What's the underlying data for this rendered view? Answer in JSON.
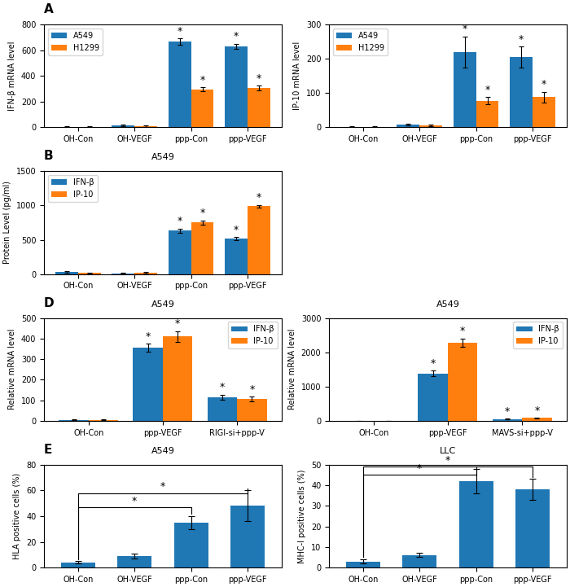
{
  "chart_data": [
    {
      "type": "bar",
      "panel_label": "A",
      "ylabel": "IFN-β mRNA level",
      "categories": [
        "OH-Con",
        "OH-VEGF",
        "ppp-Con",
        "ppp-VEGF"
      ],
      "series": [
        {
          "name": "A549",
          "values": [
            5,
            15,
            665,
            630
          ],
          "errors": [
            5,
            8,
            25,
            20
          ]
        },
        {
          "name": "H1299",
          "values": [
            3,
            8,
            295,
            305
          ],
          "errors": [
            3,
            5,
            15,
            18
          ]
        }
      ],
      "ylim": [
        0,
        800
      ],
      "yticks": [
        0,
        200,
        400,
        600,
        800
      ],
      "legend": "upper left",
      "annotations": [
        {
          "text": "*",
          "series": "A549",
          "category": "ppp-Con"
        },
        {
          "text": "*",
          "series": "A549",
          "category": "ppp-VEGF"
        },
        {
          "text": "*",
          "series": "H1299",
          "category": "ppp-Con"
        },
        {
          "text": "*",
          "series": "H1299",
          "category": "ppp-VEGF"
        }
      ]
    },
    {
      "type": "bar",
      "ylabel": "IP-10 mRNA level",
      "categories": [
        "OH-Con",
        "OH-VEGF",
        "ppp-Con",
        "ppp-VEGF"
      ],
      "series": [
        {
          "name": "A549",
          "values": [
            2,
            8,
            220,
            205
          ],
          "errors": [
            1,
            3,
            45,
            30
          ]
        },
        {
          "name": "H1299",
          "values": [
            2,
            5,
            78,
            88
          ],
          "errors": [
            1,
            2,
            10,
            15
          ]
        }
      ],
      "ylim": [
        0,
        300
      ],
      "yticks": [
        0,
        100,
        200,
        300
      ],
      "legend": "upper left",
      "annotations": [
        {
          "text": "*",
          "series": "A549",
          "category": "ppp-Con"
        },
        {
          "text": "*",
          "series": "A549",
          "category": "ppp-VEGF"
        },
        {
          "text": "*",
          "series": "H1299",
          "category": "ppp-Con"
        },
        {
          "text": "*",
          "series": "H1299",
          "category": "ppp-VEGF"
        }
      ]
    },
    {
      "type": "bar",
      "panel_label": "B",
      "title": "A549",
      "ylabel": "Protein Level (pg/ml)",
      "categories": [
        "OH-Con",
        "OH-VEGF",
        "ppp-Con",
        "ppp-VEGF"
      ],
      "series": [
        {
          "name": "IFN-β",
          "values": [
            30,
            10,
            635,
            515
          ],
          "errors": [
            8,
            5,
            30,
            25
          ]
        },
        {
          "name": "IP-10",
          "values": [
            15,
            20,
            750,
            990
          ],
          "errors": [
            5,
            8,
            35,
            20
          ]
        }
      ],
      "ylim": [
        0,
        1500
      ],
      "yticks": [
        0,
        500,
        1000,
        1500
      ],
      "legend": "upper left",
      "annotations": [
        {
          "text": "*",
          "series": "IFN-β",
          "category": "ppp-Con"
        },
        {
          "text": "*",
          "series": "IFN-β",
          "category": "ppp-VEGF"
        },
        {
          "text": "*",
          "series": "IP-10",
          "category": "ppp-Con"
        },
        {
          "text": "*",
          "series": "IP-10",
          "category": "ppp-VEGF"
        }
      ]
    },
    {
      "type": "bar",
      "panel_label": "D",
      "title": "A549",
      "ylabel": "Relative mRNA level",
      "categories": [
        "OH-Con",
        "ppp-VEGF",
        "RIGI-si+ppp-V"
      ],
      "series": [
        {
          "name": "IFN-β",
          "values": [
            5,
            355,
            115
          ],
          "errors": [
            2,
            20,
            12
          ]
        },
        {
          "name": "IP-10",
          "values": [
            5,
            410,
            105
          ],
          "errors": [
            2,
            25,
            12
          ]
        }
      ],
      "ylim": [
        0,
        500
      ],
      "yticks": [
        0,
        100,
        200,
        300,
        400,
        500
      ],
      "legend": "upper right",
      "annotations": [
        {
          "text": "*",
          "series": "IFN-β",
          "category": "ppp-VEGF"
        },
        {
          "text": "*",
          "series": "IFN-β",
          "category": "RIGI-si+ppp-V"
        },
        {
          "text": "*",
          "series": "IP-10",
          "category": "ppp-VEGF"
        },
        {
          "text": "*",
          "series": "IP-10",
          "category": "RIGI-si+ppp-V"
        }
      ]
    },
    {
      "type": "bar",
      "title": "A549",
      "ylabel": "Relative mRNA level",
      "categories": [
        "OH-Con",
        "ppp-VEGF",
        "MAVS-si+ppp-V"
      ],
      "series": [
        {
          "name": "IFN-β",
          "values": [
            5,
            1380,
            55
          ],
          "errors": [
            2,
            80,
            8
          ]
        },
        {
          "name": "IP-10",
          "values": [
            5,
            2280,
            80
          ],
          "errors": [
            2,
            120,
            10
          ]
        }
      ],
      "ylim": [
        0,
        3000
      ],
      "yticks": [
        0,
        1000,
        2000,
        3000
      ],
      "legend": "upper right",
      "annotations": [
        {
          "text": "*",
          "series": "IFN-β",
          "category": "ppp-VEGF"
        },
        {
          "text": "*",
          "series": "IFN-β",
          "category": "MAVS-si+ppp-V"
        },
        {
          "text": "*",
          "series": "IP-10",
          "category": "ppp-VEGF"
        },
        {
          "text": "*",
          "series": "IP-10",
          "category": "MAVS-si+ppp-V"
        }
      ]
    },
    {
      "type": "bar",
      "panel_label": "E",
      "title": "A549",
      "ylabel": "HLA positive cells (%)",
      "categories": [
        "OH-Con",
        "OH-VEGF",
        "ppp-Con",
        "ppp-VEGF"
      ],
      "values": [
        4,
        9,
        35,
        48
      ],
      "errors": [
        1,
        2,
        5,
        12
      ],
      "ylim": [
        0,
        80
      ],
      "yticks": [
        0,
        20,
        40,
        60,
        80
      ],
      "annotations": [
        {
          "text": "*",
          "from": "OH-Con",
          "to": "ppp-Con",
          "y": 47
        },
        {
          "text": "*",
          "from": "OH-Con",
          "to": "ppp-VEGF",
          "y": 58
        }
      ]
    },
    {
      "type": "bar",
      "title": "LLC",
      "ylabel": "MHC-I positive cells (%)",
      "categories": [
        "OH-Con",
        "OH-VEGF",
        "ppp-Con",
        "ppp-VEGF"
      ],
      "values": [
        3,
        6,
        42,
        38
      ],
      "errors": [
        1,
        1,
        6,
        5
      ],
      "ylim": [
        0,
        50
      ],
      "yticks": [
        0,
        10,
        20,
        30,
        40,
        50
      ],
      "annotations": [
        {
          "text": "*",
          "from": "OH-Con",
          "to": "ppp-Con",
          "y": 45
        },
        {
          "text": "*",
          "from": "OH-Con",
          "to": "ppp-VEGF",
          "y": 49
        }
      ]
    }
  ]
}
